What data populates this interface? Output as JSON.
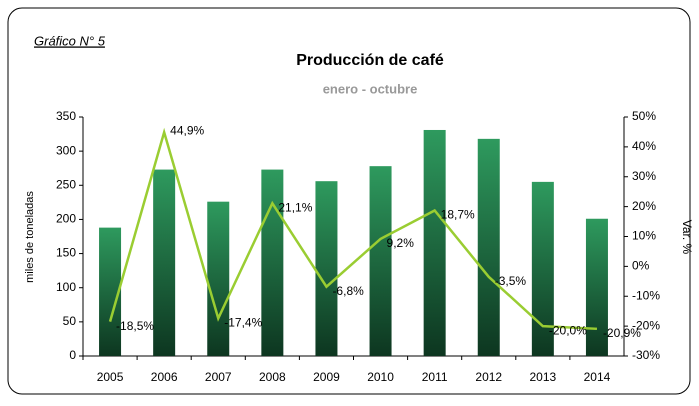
{
  "chart_data": {
    "type": "bar",
    "note": "Gráfico N° 5",
    "title": "Producción de café",
    "subtitle": "enero - octubre",
    "y_label": "miles de toneladas",
    "y2_label": "Var. %",
    "categories": [
      "2005",
      "2006",
      "2007",
      "2008",
      "2009",
      "2010",
      "2011",
      "2012",
      "2013",
      "2014"
    ],
    "series": [
      {
        "name": "Producción",
        "type": "bar",
        "color": "#2e8b57",
        "values": [
          188,
          273,
          226,
          273,
          256,
          278,
          331,
          318,
          255,
          201
        ]
      },
      {
        "name": "Var. %",
        "type": "line",
        "axis": "y2",
        "color": "#9acd32",
        "values": [
          -18.5,
          44.9,
          -17.4,
          21.1,
          -6.8,
          9.2,
          18.7,
          -3.5,
          -20.0,
          -20.9
        ],
        "value_labels": [
          "-18,5%",
          "44,9%",
          "-17,4%",
          "21,1%",
          "-6,8%",
          "9,2%",
          "18,7%",
          "-3,5%",
          "-20,0%",
          "-20,9%"
        ]
      }
    ],
    "ylim": [
      0,
      350
    ],
    "yticks": [
      0,
      50,
      100,
      150,
      200,
      250,
      300,
      350
    ],
    "y2lim": [
      -30,
      50
    ],
    "y2ticks": [
      {
        "value": -30,
        "label": "-30%"
      },
      {
        "value": -20,
        "label": "-20%"
      },
      {
        "value": -10,
        "label": "-10%"
      },
      {
        "value": 0,
        "label": "0%"
      },
      {
        "value": 10,
        "label": "10%"
      },
      {
        "value": 20,
        "label": "20%"
      },
      {
        "value": 30,
        "label": "30%"
      },
      {
        "value": 40,
        "label": "40%"
      },
      {
        "value": 50,
        "label": "50%"
      }
    ]
  }
}
